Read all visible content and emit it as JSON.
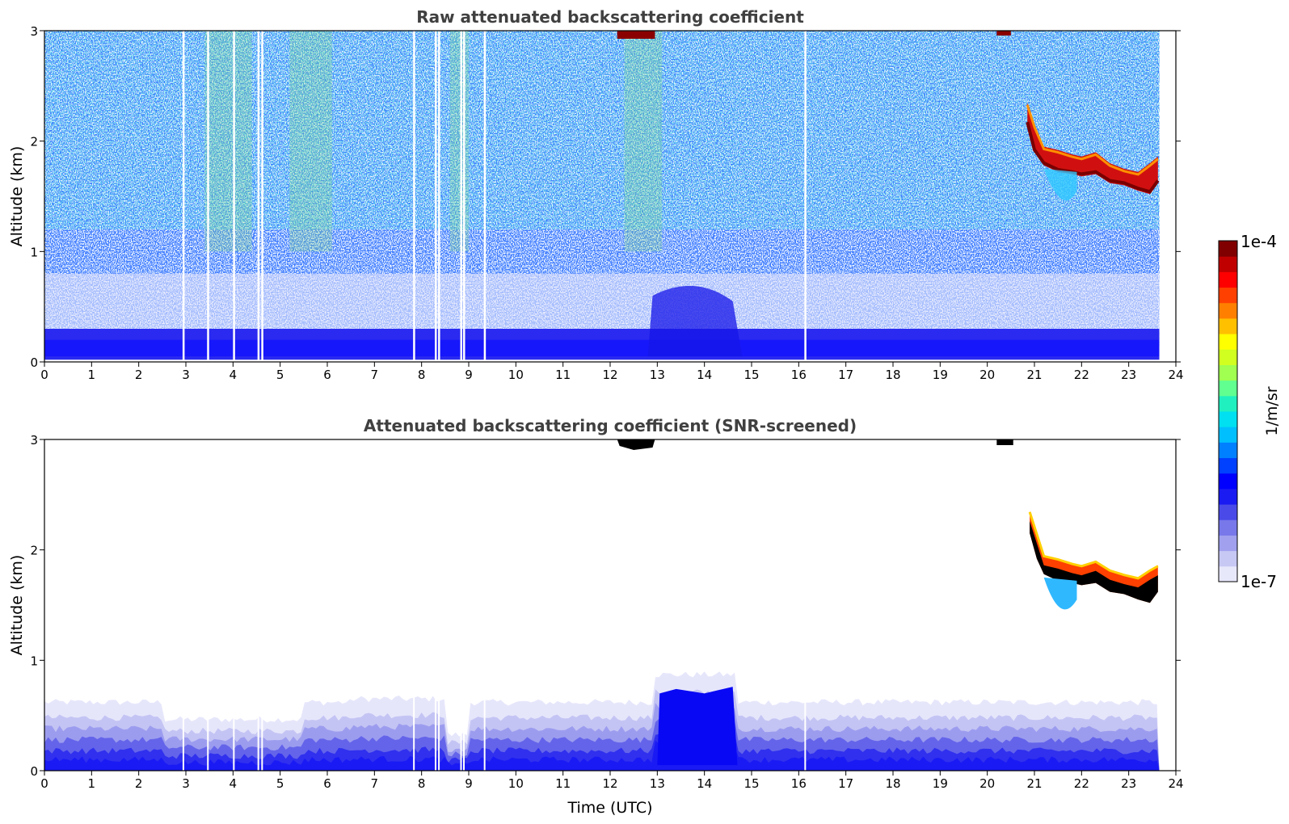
{
  "chart_data": [
    {
      "type": "heatmap",
      "title": "Raw attenuated backscattering coefficient",
      "xlabel": "",
      "ylabel": "Altitude (km)",
      "xlim": [
        0,
        24
      ],
      "ylim": [
        0,
        3
      ],
      "xticks": [
        "0",
        "1",
        "2",
        "3",
        "4",
        "5",
        "6",
        "7",
        "8",
        "9",
        "10",
        "11",
        "12",
        "13",
        "14",
        "15",
        "16",
        "17",
        "18",
        "19",
        "20",
        "21",
        "22",
        "23",
        "24"
      ],
      "yticks": [
        "0",
        "1",
        "2",
        "3"
      ],
      "data_end_hour": 23.65,
      "features": [
        {
          "name": "boundary-layer",
          "x": [
            0,
            23.65
          ],
          "y": [
            0,
            0.3
          ],
          "level": "low"
        },
        {
          "name": "noisy-background",
          "x": [
            0,
            23.65
          ],
          "y": [
            0.3,
            3
          ],
          "level": "noise"
        },
        {
          "name": "aerosol-plume-13-15h",
          "x": [
            12.8,
            14.8
          ],
          "y": [
            0,
            0.7
          ],
          "level": "low"
        },
        {
          "name": "cloud-top-12-13h",
          "x": [
            12.2,
            12.9
          ],
          "y": [
            2.95,
            3
          ],
          "level": "high"
        },
        {
          "name": "cloud-layer-21-24h",
          "x": [
            20.8,
            23.6
          ],
          "y": [
            1.5,
            2.3
          ],
          "level": "high"
        }
      ]
    },
    {
      "type": "heatmap",
      "title": "Attenuated backscattering coefficient (SNR-screened)",
      "xlabel": "Time (UTC)",
      "ylabel": "Altitude (km)",
      "xlim": [
        0,
        24
      ],
      "ylim": [
        0,
        3
      ],
      "xticks": [
        "0",
        "1",
        "2",
        "3",
        "4",
        "5",
        "6",
        "7",
        "8",
        "9",
        "10",
        "11",
        "12",
        "13",
        "14",
        "15",
        "16",
        "17",
        "18",
        "19",
        "20",
        "21",
        "22",
        "23",
        "24"
      ],
      "yticks": [
        "0",
        "1",
        "2",
        "3"
      ],
      "data_end_hour": 23.65,
      "features": [
        {
          "name": "boundary-layer",
          "x": [
            0,
            23.65
          ],
          "y": [
            0,
            0.6
          ],
          "level": "low"
        },
        {
          "name": "aerosol-plume-13-15h",
          "x": [
            13,
            14.7
          ],
          "y": [
            0,
            0.75
          ],
          "level": "low"
        },
        {
          "name": "cloud-top-12-13h",
          "x": [
            12.2,
            12.9
          ],
          "y": [
            2.9,
            3
          ],
          "level": "saturated"
        },
        {
          "name": "cloud-layer-21-24h",
          "x": [
            20.8,
            23.6
          ],
          "y": [
            1.5,
            2.3
          ],
          "level": "high"
        }
      ]
    }
  ],
  "colorbar": {
    "label": "1/m/sr",
    "max_label": "1e-4",
    "min_label": "1e-7",
    "colors": [
      "#e8e8fb",
      "#c8c8f4",
      "#a0a0ef",
      "#7878ea",
      "#4a4ae8",
      "#1a1af2",
      "#0000ff",
      "#0040ff",
      "#0080ff",
      "#00bfff",
      "#00e0f0",
      "#20f0c0",
      "#60ff90",
      "#a0ff50",
      "#d0ff20",
      "#ffff00",
      "#ffc000",
      "#ff8000",
      "#ff4000",
      "#ff0000",
      "#c00000",
      "#800000"
    ]
  }
}
